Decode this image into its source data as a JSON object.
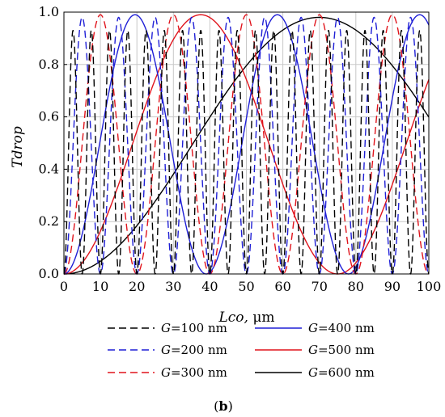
{
  "chart_data": {
    "type": "line",
    "xlabel_var": "Lco,",
    "xlabel_unit": " μm",
    "ylabel": "Tdrop",
    "xlim": [
      0,
      100
    ],
    "ylim": [
      0,
      1.0
    ],
    "x_ticks": [
      0,
      10,
      20,
      30,
      40,
      50,
      60,
      70,
      80,
      90,
      100
    ],
    "y_ticks": [
      0.0,
      0.2,
      0.4,
      0.6,
      0.8,
      1.0
    ],
    "x_tick_labels": [
      "0",
      "10",
      "20",
      "30",
      "40",
      "50",
      "60",
      "70",
      "80",
      "90",
      "100"
    ],
    "y_tick_labels": [
      "0.0",
      "0.2",
      "0.4",
      "0.6",
      "0.8",
      "1.0"
    ],
    "grid": true,
    "legend_position": "bottom",
    "panel_label": "b",
    "series": [
      {
        "name_var": "G",
        "name_value": "=100 nm",
        "color": "#000000",
        "dashed": true,
        "amplitude": 0.93,
        "half_period_um": 2.5
      },
      {
        "name_var": "G",
        "name_value": "=200 nm",
        "color": "#1f1fd6",
        "dashed": true,
        "amplitude": 0.98,
        "half_period_um": 5.0
      },
      {
        "name_var": "G",
        "name_value": "=300 nm",
        "color": "#e0141c",
        "dashed": true,
        "amplitude": 0.99,
        "half_period_um": 10.0
      },
      {
        "name_var": "G",
        "name_value": "=400 nm",
        "color": "#1f1fd6",
        "dashed": false,
        "amplitude": 0.99,
        "half_period_um": 19.5
      },
      {
        "name_var": "G",
        "name_value": "=500 nm",
        "color": "#e0141c",
        "dashed": false,
        "amplitude": 0.99,
        "half_period_um": 37.5
      },
      {
        "name_var": "G",
        "name_value": "=600 nm",
        "color": "#000000",
        "dashed": false,
        "amplitude": 0.98,
        "half_period_um": 70.0
      }
    ]
  }
}
